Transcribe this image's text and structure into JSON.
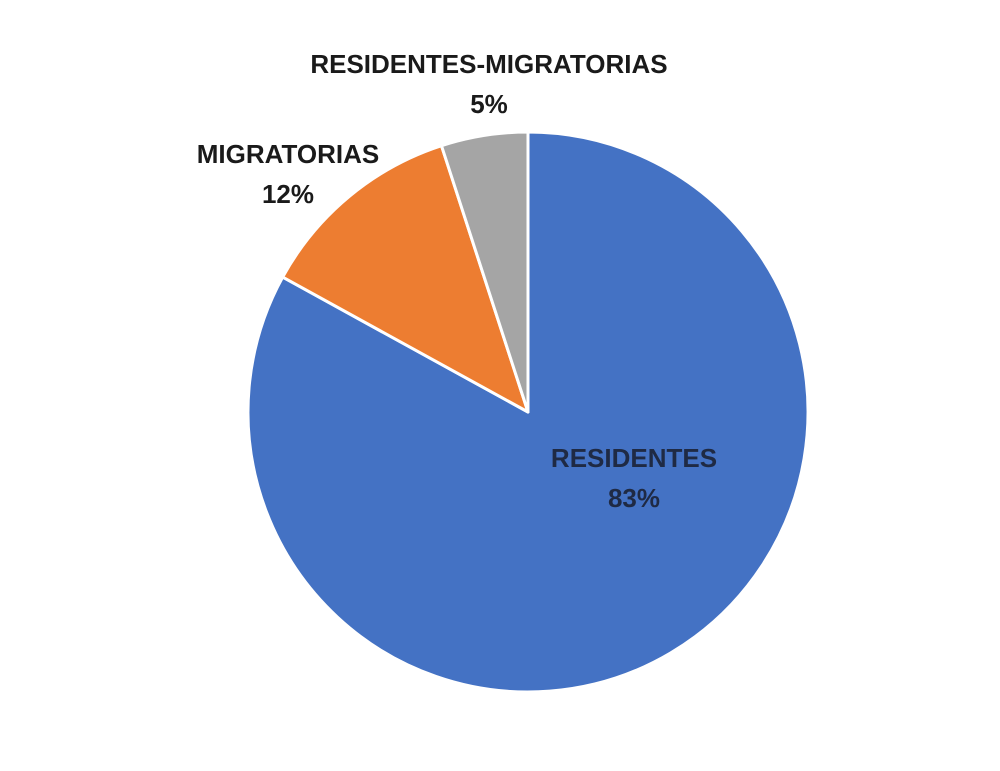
{
  "chart_data": {
    "type": "pie",
    "start_angle_deg": 0,
    "direction": "clockwise",
    "slices": [
      {
        "label": "RESIDENTES",
        "value": 83,
        "display_value": "83%",
        "color": "#4472C4",
        "label_color": "#1F2A44"
      },
      {
        "label": "MIGRATORIAS",
        "value": 12,
        "display_value": "12%",
        "color": "#ED7D31",
        "label_color": "#1A1A1A"
      },
      {
        "label": "RESIDENTES-MIGRATORIAS",
        "value": 5,
        "display_value": "5%",
        "color": "#A5A5A5",
        "label_color": "#1A1A1A"
      }
    ],
    "label_placement": [
      "inside",
      "outside",
      "outside"
    ],
    "legend": false
  }
}
